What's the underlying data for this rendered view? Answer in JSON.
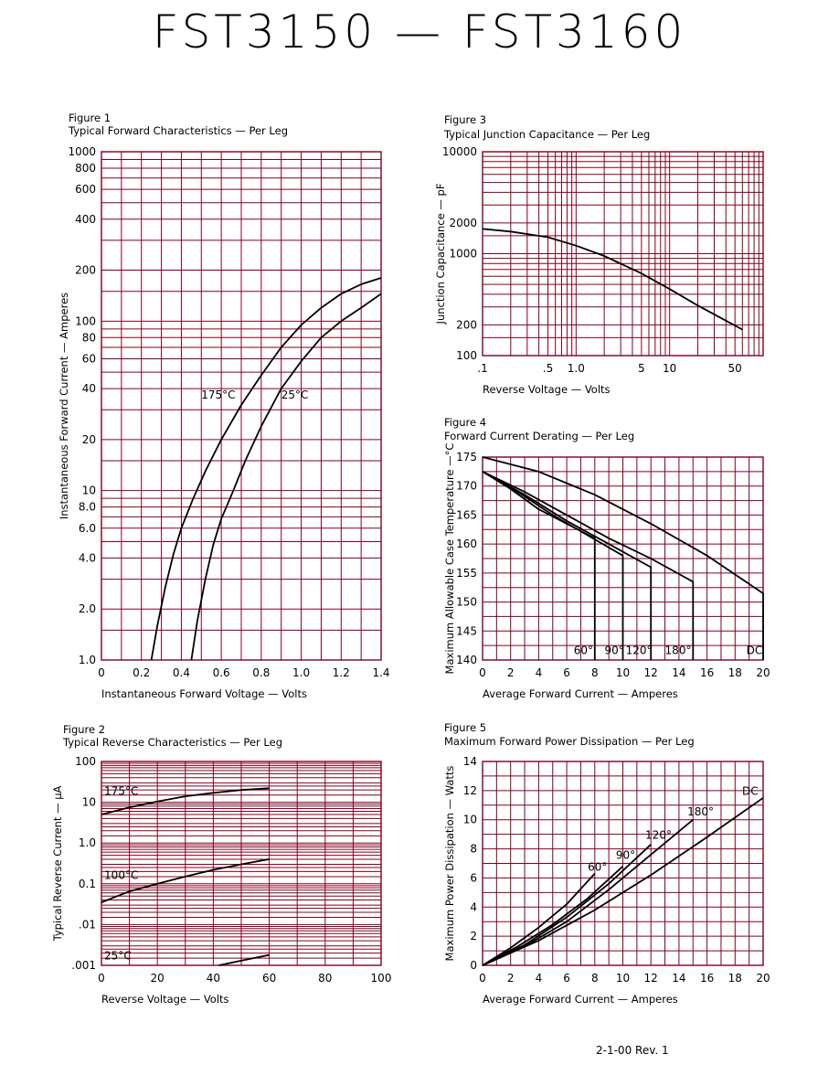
{
  "page": {
    "title": "FST3150  —  FST3160",
    "footer": "2-1-00   Rev. 1",
    "grid_color": "#800020",
    "curve_color": "#000000"
  },
  "chart_data": [
    {
      "id": "fig1",
      "type": "line",
      "figure": "Figure 1",
      "title": "Typical Forward Characteristics — Per Leg",
      "xlabel": "Instantaneous Forward Voltage — Volts",
      "ylabel": "Instantaneous Forward Current — Amperes",
      "xlim": [
        0,
        1.4
      ],
      "ylim": [
        1,
        1000
      ],
      "yscale": "log",
      "xticks": [
        0,
        0.2,
        0.4,
        0.6,
        0.8,
        1.0,
        1.2,
        1.4
      ],
      "xticklabels": [
        "0",
        "0.2",
        "0.4",
        "0.6",
        "0.8",
        "1.0",
        "1.2",
        "1.4"
      ],
      "yticks": [
        1,
        2,
        4,
        6,
        8,
        10,
        20,
        40,
        60,
        80,
        100,
        200,
        400,
        600,
        800,
        1000
      ],
      "yticklabels": [
        "1.0",
        "2.0",
        "4.0",
        "6.0",
        "8.0",
        "10",
        "20",
        "40",
        "60",
        "80",
        "100",
        "200",
        "400",
        "600",
        "800",
        "1000"
      ],
      "series": [
        {
          "name": "175°C",
          "x": [
            0.25,
            0.28,
            0.32,
            0.36,
            0.4,
            0.46,
            0.52,
            0.6,
            0.7,
            0.8,
            0.9,
            1.0,
            1.1,
            1.2,
            1.3,
            1.4
          ],
          "y": [
            1.0,
            1.6,
            2.7,
            4.2,
            6.0,
            9.0,
            13,
            20,
            32,
            48,
            70,
            95,
            120,
            145,
            165,
            180
          ]
        },
        {
          "name": "25°C",
          "x": [
            0.45,
            0.48,
            0.52,
            0.56,
            0.6,
            0.66,
            0.72,
            0.8,
            0.9,
            1.0,
            1.1,
            1.2,
            1.3,
            1.4
          ],
          "y": [
            1.0,
            1.7,
            3.0,
            4.8,
            6.8,
            10,
            15,
            24,
            40,
            58,
            80,
            100,
            120,
            145
          ]
        }
      ],
      "annotations": [
        {
          "text": "175°C",
          "x": 0.5,
          "y": 35
        },
        {
          "text": "25°C",
          "x": 0.9,
          "y": 35
        }
      ]
    },
    {
      "id": "fig2",
      "type": "line",
      "figure": "Figure 2",
      "title": "Typical Reverse Characteristics — Per Leg",
      "xlabel": "Reverse Voltage — Volts",
      "ylabel": "Typical Reverse Current — µA",
      "xlim": [
        0,
        100
      ],
      "ylim": [
        0.001,
        100
      ],
      "yscale": "log",
      "xticks": [
        0,
        20,
        40,
        60,
        80,
        100
      ],
      "xticklabels": [
        "0",
        "20",
        "40",
        "60",
        "80",
        "100"
      ],
      "yticks": [
        0.001,
        0.01,
        0.1,
        1,
        10,
        100
      ],
      "yticklabels": [
        ".001",
        ".01",
        "0.1",
        "1.0",
        "10",
        "100"
      ],
      "series": [
        {
          "name": "175°C",
          "x": [
            0,
            10,
            20,
            30,
            40,
            50,
            60
          ],
          "y": [
            5.0,
            7.5,
            10.5,
            14,
            17,
            20,
            22
          ]
        },
        {
          "name": "100°C",
          "x": [
            0,
            10,
            20,
            30,
            40,
            50,
            60
          ],
          "y": [
            0.035,
            0.065,
            0.1,
            0.15,
            0.22,
            0.3,
            0.4
          ]
        },
        {
          "name": "25°C",
          "x": [
            42,
            50,
            60
          ],
          "y": [
            0.001,
            0.0013,
            0.0018
          ]
        }
      ],
      "annotations": [
        {
          "text": "175°C",
          "x": 1,
          "y": 15
        },
        {
          "text": "100°C",
          "x": 1,
          "y": 0.13
        },
        {
          "text": "25°C",
          "x": 1,
          "y": 0.0014
        }
      ]
    },
    {
      "id": "fig3",
      "type": "line",
      "figure": "Figure 3",
      "title": "Typical Junction Capacitance — Per Leg",
      "xlabel": "Reverse Voltage — Volts",
      "ylabel": "Junction Capacitance — pF",
      "xlim": [
        0.1,
        100
      ],
      "ylim": [
        100,
        10000
      ],
      "xscale": "log",
      "yscale": "log",
      "xticks": [
        0.1,
        0.5,
        1.0,
        5,
        10,
        50
      ],
      "xticklabels": [
        ".1",
        ".5",
        "1.0",
        "5",
        "10",
        "50"
      ],
      "yticks": [
        100,
        200,
        1000,
        2000,
        10000
      ],
      "yticklabels": [
        "100",
        "200",
        "1000",
        "2000",
        "10000"
      ],
      "series": [
        {
          "name": "",
          "x": [
            0.1,
            0.2,
            0.5,
            1.0,
            2.0,
            5,
            10,
            20,
            40,
            60
          ],
          "y": [
            1750,
            1650,
            1450,
            1200,
            950,
            640,
            450,
            310,
            220,
            180
          ]
        }
      ]
    },
    {
      "id": "fig4",
      "type": "line",
      "figure": "Figure 4",
      "title": "Forward Current Derating — Per Leg",
      "xlabel": "Average Forward Current — Amperes",
      "ylabel": "Maximum Allowable Case Temperature —°C",
      "xlim": [
        0,
        20
      ],
      "ylim": [
        140,
        175
      ],
      "xticks": [
        0,
        2,
        4,
        6,
        8,
        10,
        12,
        14,
        16,
        18,
        20
      ],
      "xticklabels": [
        "0",
        "2",
        "4",
        "6",
        "8",
        "10",
        "12",
        "14",
        "16",
        "18",
        "20"
      ],
      "yticks": [
        140,
        145,
        150,
        155,
        160,
        165,
        170,
        175
      ],
      "yticklabels": [
        "140",
        "145",
        "150",
        "155",
        "160",
        "165",
        "170",
        "175"
      ],
      "series": [
        {
          "name": "DC",
          "x": [
            0,
            4,
            8,
            12,
            16,
            20,
            20
          ],
          "y": [
            175,
            172.5,
            168.5,
            163.5,
            158,
            151.5,
            140
          ]
        },
        {
          "name": "180°",
          "x": [
            0,
            3,
            6,
            9,
            12,
            15,
            15
          ],
          "y": [
            172.5,
            169,
            165,
            161,
            157.5,
            153.5,
            140
          ]
        },
        {
          "name": "120°",
          "x": [
            0,
            3,
            6,
            9,
            12,
            12
          ],
          "y": [
            172.5,
            168.5,
            164,
            160,
            156,
            140
          ]
        },
        {
          "name": "90°",
          "x": [
            0,
            2.5,
            5,
            7.5,
            10,
            10
          ],
          "y": [
            172.5,
            169,
            165,
            161.5,
            158,
            140
          ]
        },
        {
          "name": "60°",
          "x": [
            0,
            2,
            4,
            6,
            8,
            8
          ],
          "y": [
            172.5,
            169.5,
            166,
            163.5,
            161,
            140
          ]
        }
      ],
      "annotations": [
        {
          "text": "60°",
          "x": 6.5,
          "y": 141
        },
        {
          "text": "90°",
          "x": 8.7,
          "y": 141
        },
        {
          "text": "120°",
          "x": 10.2,
          "y": 141
        },
        {
          "text": "180°",
          "x": 13,
          "y": 141
        },
        {
          "text": "DC",
          "x": 18.8,
          "y": 141
        }
      ]
    },
    {
      "id": "fig5",
      "type": "line",
      "figure": "Figure 5",
      "title": "Maximum Forward Power Dissipation — Per Leg",
      "xlabel": "Average Forward Current — Amperes",
      "ylabel": "Maximum Power Dissipation — Watts",
      "xlim": [
        0,
        20
      ],
      "ylim": [
        0,
        14
      ],
      "xticks": [
        0,
        2,
        4,
        6,
        8,
        10,
        12,
        14,
        16,
        18,
        20
      ],
      "xticklabels": [
        "0",
        "2",
        "4",
        "6",
        "8",
        "10",
        "12",
        "14",
        "16",
        "18",
        "20"
      ],
      "yticks": [
        0,
        2,
        4,
        6,
        8,
        10,
        12,
        14
      ],
      "yticklabels": [
        "0",
        "2",
        "4",
        "6",
        "8",
        "10",
        "12",
        "14"
      ],
      "series": [
        {
          "name": "60°",
          "x": [
            0,
            2,
            4,
            6,
            8
          ],
          "y": [
            0,
            1.2,
            2.6,
            4.2,
            6.3
          ]
        },
        {
          "name": "90°",
          "x": [
            0,
            2.5,
            5,
            7.5,
            10
          ],
          "y": [
            0,
            1.3,
            2.8,
            4.6,
            6.8
          ]
        },
        {
          "name": "120°",
          "x": [
            0,
            3,
            6,
            9,
            12
          ],
          "y": [
            0,
            1.4,
            3.3,
            5.6,
            8.3
          ]
        },
        {
          "name": "180°",
          "x": [
            0,
            3,
            6,
            9,
            12,
            15
          ],
          "y": [
            0,
            1.3,
            3.0,
            5.2,
            7.6,
            10.0
          ]
        },
        {
          "name": "DC",
          "x": [
            0,
            4,
            8,
            12,
            16,
            20
          ],
          "y": [
            0,
            1.7,
            3.8,
            6.2,
            8.8,
            11.5
          ]
        }
      ],
      "annotations": [
        {
          "text": "60°",
          "x": 7.5,
          "y": 6.5
        },
        {
          "text": "90°",
          "x": 9.5,
          "y": 7.3
        },
        {
          "text": "120°",
          "x": 11.6,
          "y": 8.7
        },
        {
          "text": "180°",
          "x": 14.6,
          "y": 10.3
        },
        {
          "text": "DC",
          "x": 18.5,
          "y": 11.7
        }
      ]
    }
  ]
}
